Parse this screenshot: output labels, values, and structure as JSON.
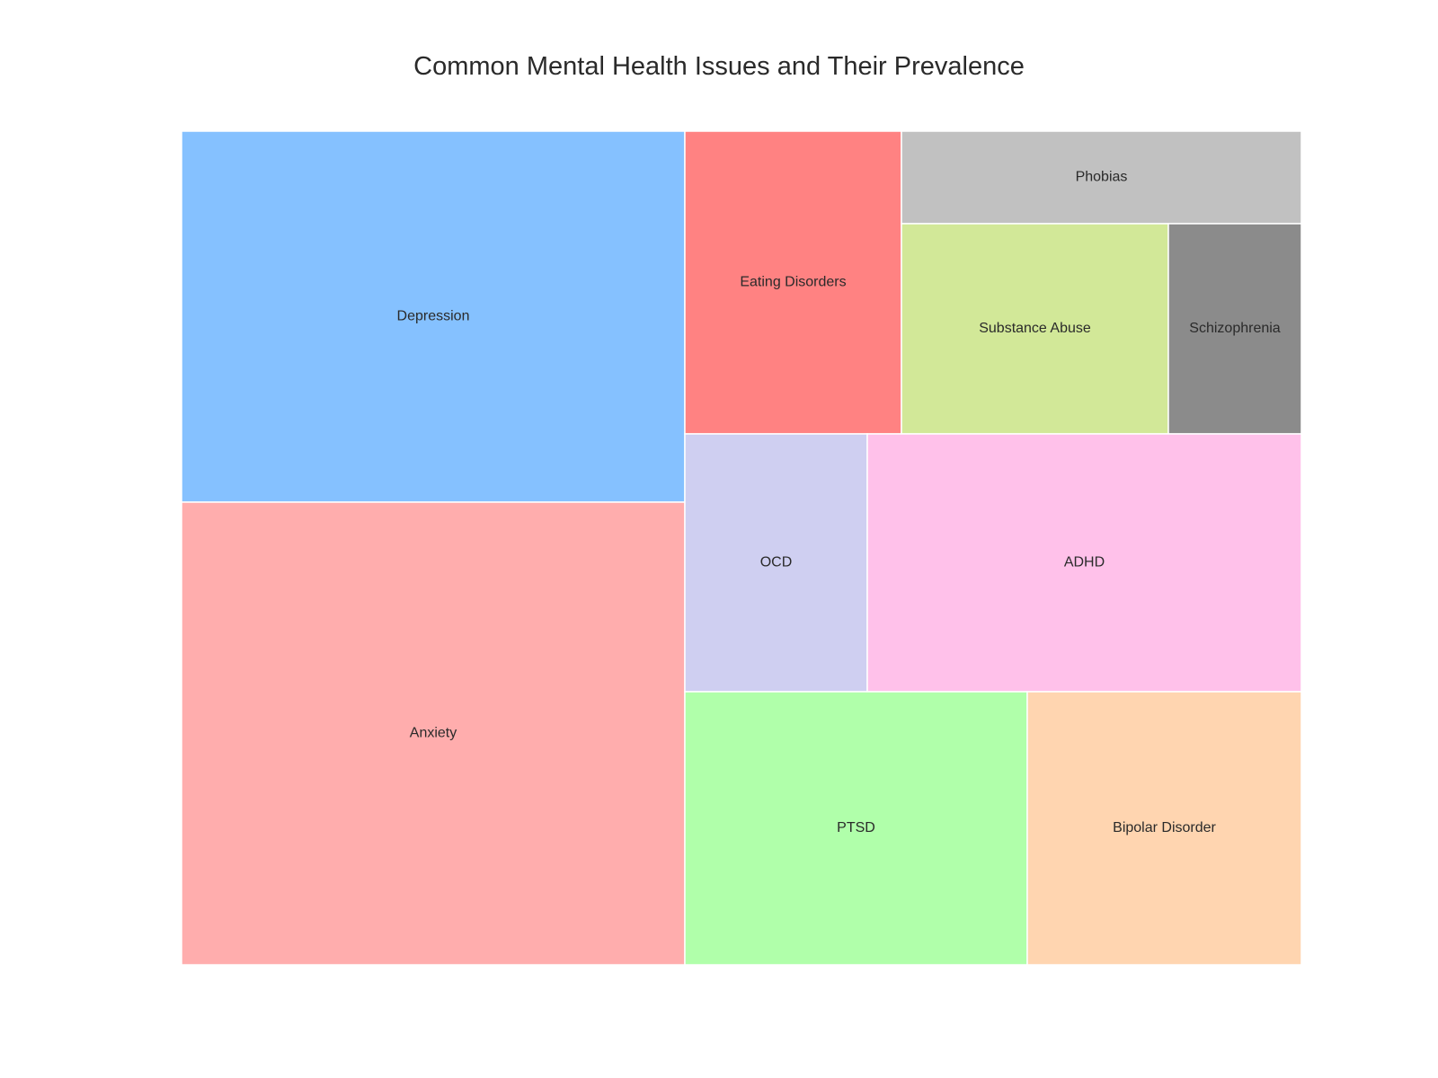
{
  "chart_data": {
    "type": "treemap",
    "title": "Common Mental Health Issues and Their Prevalence",
    "items": [
      {
        "label": "Depression",
        "value": 21,
        "color": "#85c1ff"
      },
      {
        "label": "Anxiety",
        "value": 27,
        "color": "#ffadad"
      },
      {
        "label": "Eating Disorders",
        "value": 7,
        "color": "#ff8282"
      },
      {
        "label": "Phobias",
        "value": 4,
        "color": "#c1c1c1"
      },
      {
        "label": "Substance Abuse",
        "value": 6.5,
        "color": "#d2e898"
      },
      {
        "label": "Schizophrenia",
        "value": 3.3,
        "color": "#8b8b8b"
      },
      {
        "label": "OCD",
        "value": 5,
        "color": "#cfcff1"
      },
      {
        "label": "ADHD",
        "value": 12,
        "color": "#ffc1ea"
      },
      {
        "label": "PTSD",
        "value": 10.5,
        "color": "#b0ffaa"
      },
      {
        "label": "Bipolar Disorder",
        "value": 8.5,
        "color": "#ffd5b0"
      }
    ]
  }
}
